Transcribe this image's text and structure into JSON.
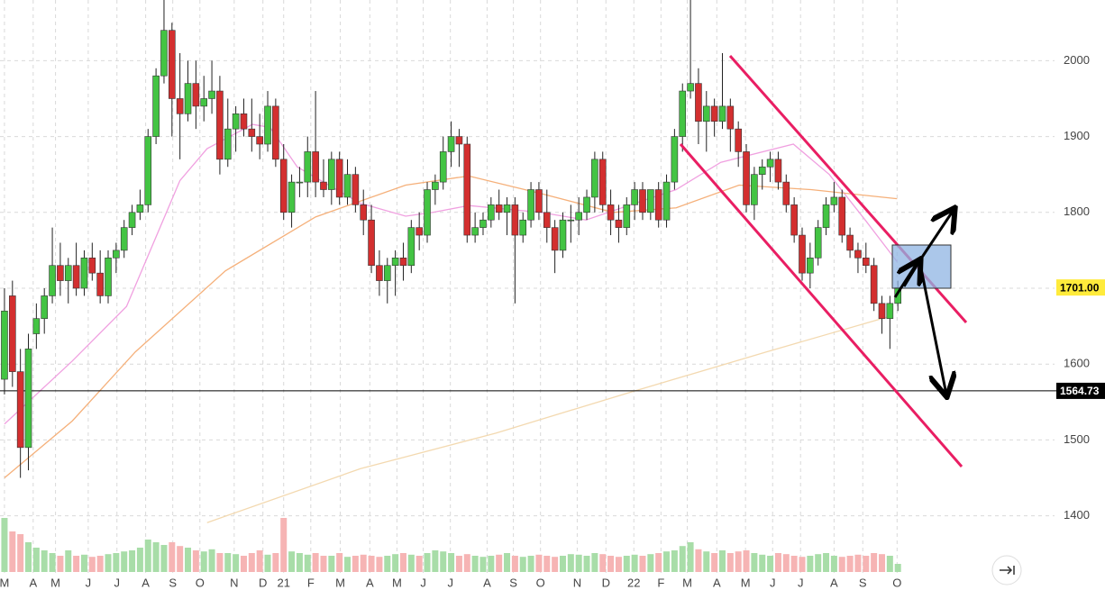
{
  "chart_data": {
    "type": "candlestick",
    "up_color": "#43c443",
    "down_color": "#d32f2f",
    "candles": [
      [
        1580,
        1700,
        1560,
        1670
      ],
      [
        1690,
        1710,
        1570,
        1590
      ],
      [
        1590,
        1620,
        1450,
        1490
      ],
      [
        1490,
        1640,
        1460,
        1620
      ],
      [
        1640,
        1680,
        1620,
        1660
      ],
      [
        1660,
        1700,
        1640,
        1690
      ],
      [
        1690,
        1780,
        1680,
        1730
      ],
      [
        1730,
        1760,
        1690,
        1710
      ],
      [
        1710,
        1740,
        1680,
        1730
      ],
      [
        1730,
        1760,
        1690,
        1700
      ],
      [
        1700,
        1750,
        1690,
        1740
      ],
      [
        1740,
        1760,
        1710,
        1720
      ],
      [
        1720,
        1750,
        1680,
        1690
      ],
      [
        1690,
        1750,
        1680,
        1740
      ],
      [
        1740,
        1760,
        1720,
        1750
      ],
      [
        1750,
        1790,
        1740,
        1780
      ],
      [
        1780,
        1810,
        1770,
        1800
      ],
      [
        1800,
        1830,
        1790,
        1810
      ],
      [
        1810,
        1910,
        1800,
        1900
      ],
      [
        1900,
        1990,
        1890,
        1980
      ],
      [
        1980,
        2080,
        1970,
        2040
      ],
      [
        2040,
        2050,
        1900,
        1950
      ],
      [
        1950,
        2010,
        1870,
        1930
      ],
      [
        1930,
        2000,
        1920,
        1970
      ],
      [
        1970,
        2000,
        1910,
        1940
      ],
      [
        1940,
        1980,
        1920,
        1950
      ],
      [
        1950,
        2000,
        1930,
        1960
      ],
      [
        1960,
        1980,
        1850,
        1870
      ],
      [
        1870,
        1950,
        1860,
        1910
      ],
      [
        1910,
        1940,
        1880,
        1930
      ],
      [
        1930,
        1950,
        1900,
        1910
      ],
      [
        1910,
        1950,
        1880,
        1900
      ],
      [
        1900,
        1930,
        1870,
        1890
      ],
      [
        1890,
        1960,
        1880,
        1940
      ],
      [
        1940,
        1950,
        1860,
        1870
      ],
      [
        1870,
        1890,
        1790,
        1800
      ],
      [
        1800,
        1850,
        1780,
        1840
      ],
      [
        1840,
        1860,
        1820,
        1840
      ],
      [
        1840,
        1900,
        1820,
        1880
      ],
      [
        1880,
        1960,
        1820,
        1840
      ],
      [
        1840,
        1870,
        1820,
        1830
      ],
      [
        1830,
        1880,
        1810,
        1870
      ],
      [
        1870,
        1880,
        1810,
        1820
      ],
      [
        1820,
        1870,
        1810,
        1850
      ],
      [
        1850,
        1860,
        1800,
        1810
      ],
      [
        1810,
        1830,
        1770,
        1790
      ],
      [
        1790,
        1810,
        1720,
        1730
      ],
      [
        1730,
        1750,
        1690,
        1710
      ],
      [
        1710,
        1740,
        1680,
        1730
      ],
      [
        1730,
        1750,
        1690,
        1740
      ],
      [
        1740,
        1760,
        1710,
        1730
      ],
      [
        1730,
        1790,
        1720,
        1780
      ],
      [
        1780,
        1800,
        1750,
        1770
      ],
      [
        1770,
        1840,
        1760,
        1830
      ],
      [
        1830,
        1850,
        1810,
        1840
      ],
      [
        1840,
        1900,
        1830,
        1880
      ],
      [
        1880,
        1920,
        1860,
        1900
      ],
      [
        1900,
        1910,
        1860,
        1890
      ],
      [
        1890,
        1900,
        1760,
        1770
      ],
      [
        1770,
        1800,
        1760,
        1780
      ],
      [
        1780,
        1800,
        1770,
        1790
      ],
      [
        1790,
        1820,
        1780,
        1810
      ],
      [
        1810,
        1830,
        1790,
        1800
      ],
      [
        1800,
        1820,
        1770,
        1810
      ],
      [
        1810,
        1820,
        1680,
        1770
      ],
      [
        1770,
        1800,
        1760,
        1790
      ],
      [
        1790,
        1840,
        1780,
        1830
      ],
      [
        1830,
        1840,
        1790,
        1800
      ],
      [
        1800,
        1830,
        1760,
        1780
      ],
      [
        1780,
        1790,
        1720,
        1750
      ],
      [
        1750,
        1800,
        1740,
        1790
      ],
      [
        1790,
        1810,
        1760,
        1790
      ],
      [
        1790,
        1820,
        1770,
        1800
      ],
      [
        1800,
        1830,
        1790,
        1820
      ],
      [
        1820,
        1880,
        1800,
        1870
      ],
      [
        1870,
        1880,
        1800,
        1810
      ],
      [
        1810,
        1830,
        1770,
        1790
      ],
      [
        1790,
        1810,
        1760,
        1780
      ],
      [
        1780,
        1820,
        1770,
        1810
      ],
      [
        1810,
        1840,
        1790,
        1830
      ],
      [
        1830,
        1840,
        1790,
        1800
      ],
      [
        1800,
        1830,
        1790,
        1830
      ],
      [
        1830,
        1840,
        1780,
        1790
      ],
      [
        1790,
        1850,
        1780,
        1840
      ],
      [
        1840,
        1910,
        1830,
        1900
      ],
      [
        1900,
        1970,
        1880,
        1960
      ],
      [
        1960,
        2080,
        1950,
        1970
      ],
      [
        1970,
        1990,
        1890,
        1920
      ],
      [
        1920,
        1960,
        1880,
        1940
      ],
      [
        1940,
        1950,
        1900,
        1920
      ],
      [
        1920,
        2010,
        1910,
        1940
      ],
      [
        1940,
        1950,
        1880,
        1910
      ],
      [
        1910,
        1920,
        1860,
        1880
      ],
      [
        1880,
        1890,
        1800,
        1810
      ],
      [
        1810,
        1860,
        1790,
        1850
      ],
      [
        1850,
        1870,
        1830,
        1860
      ],
      [
        1860,
        1880,
        1840,
        1870
      ],
      [
        1870,
        1880,
        1830,
        1840
      ],
      [
        1840,
        1850,
        1800,
        1810
      ],
      [
        1810,
        1820,
        1760,
        1770
      ],
      [
        1770,
        1780,
        1710,
        1720
      ],
      [
        1720,
        1760,
        1700,
        1740
      ],
      [
        1740,
        1790,
        1730,
        1780
      ],
      [
        1780,
        1820,
        1770,
        1810
      ],
      [
        1810,
        1840,
        1800,
        1820
      ],
      [
        1820,
        1830,
        1760,
        1770
      ],
      [
        1770,
        1780,
        1740,
        1750
      ],
      [
        1750,
        1760,
        1720,
        1740
      ],
      [
        1740,
        1760,
        1720,
        1730
      ],
      [
        1730,
        1740,
        1670,
        1680
      ],
      [
        1680,
        1690,
        1640,
        1660
      ],
      [
        1660,
        1690,
        1620,
        1680
      ],
      [
        1680,
        1710,
        1670,
        1701
      ]
    ],
    "volume": {
      "up_color": "#a8dda8",
      "down_color": "#f6b4b4",
      "vlim": [
        0,
        100
      ],
      "values": [
        100,
        75,
        70,
        55,
        45,
        40,
        35,
        30,
        40,
        30,
        32,
        28,
        30,
        33,
        35,
        38,
        40,
        45,
        60,
        55,
        50,
        55,
        48,
        45,
        40,
        38,
        42,
        35,
        35,
        33,
        30,
        35,
        40,
        32,
        35,
        100,
        38,
        35,
        32,
        35,
        30,
        30,
        35,
        28,
        30,
        32,
        30,
        28,
        30,
        33,
        35,
        32,
        30,
        35,
        40,
        38,
        35,
        30,
        33,
        30,
        28,
        30,
        32,
        35,
        30,
        28,
        30,
        32,
        30,
        28,
        30,
        33,
        32,
        30,
        35,
        33,
        30,
        28,
        30,
        32,
        30,
        33,
        35,
        38,
        40,
        48,
        55,
        42,
        38,
        35,
        40,
        35,
        38,
        40,
        35,
        32,
        30,
        35,
        33,
        30,
        28,
        30,
        33,
        35,
        30,
        28,
        30,
        32,
        30,
        35,
        33,
        30,
        15
      ]
    },
    "moving_averages": [
      {
        "color": "#f0a0e0",
        "x": [
          0,
          8.5,
          15.3,
          22,
          25.4,
          31.1,
          33.3,
          36.7,
          44.6,
          50.3,
          53.7,
          58.2,
          67.2,
          72.9,
          78.5,
          84.2,
          89.8,
          98.9,
          103.4,
          107.9,
          111.9
        ],
        "values": [
          1521,
          1604,
          1676,
          1842,
          1884,
          1916,
          1912,
          1860,
          1812,
          1795,
          1800,
          1809,
          1800,
          1790,
          1810,
          1830,
          1866,
          1890,
          1850,
          1790,
          1735
        ]
      },
      {
        "color": "#f5b07a",
        "x": [
          0,
          8.5,
          16.4,
          27.7,
          39,
          50.3,
          58.2,
          67.2,
          76.3,
          84.2,
          92.1,
          101.1,
          111.9
        ],
        "values": [
          1450,
          1525,
          1616,
          1723,
          1794,
          1836,
          1848,
          1825,
          1800,
          1806,
          1836,
          1830,
          1818
        ]
      },
      {
        "color": "#f3d9b0",
        "x": [
          25.4,
          44.6,
          61.6,
          78.5,
          95.5,
          111.3
        ],
        "values": [
          1391,
          1462,
          1509,
          1563,
          1616,
          1664
        ]
      }
    ],
    "xlim": [
      -0.56,
      112.43
    ],
    "ylim": [
      1320,
      2080
    ],
    "yticks": [
      1400,
      1500,
      1600,
      1700,
      1800,
      1900,
      2000
    ],
    "xticks": [
      {
        "value": 0,
        "label": "M"
      },
      {
        "value": 3.6,
        "label": "A"
      },
      {
        "value": 6.4,
        "label": "M"
      },
      {
        "value": 10.5,
        "label": "J"
      },
      {
        "value": 14.1,
        "label": "J"
      },
      {
        "value": 17.7,
        "label": "A"
      },
      {
        "value": 21.1,
        "label": "S"
      },
      {
        "value": 24.5,
        "label": "O"
      },
      {
        "value": 28.8,
        "label": "N"
      },
      {
        "value": 32.4,
        "label": "D"
      },
      {
        "value": 35,
        "label": "21"
      },
      {
        "value": 38.4,
        "label": "F"
      },
      {
        "value": 42.1,
        "label": "M"
      },
      {
        "value": 45.8,
        "label": "A"
      },
      {
        "value": 49.2,
        "label": "M"
      },
      {
        "value": 52.5,
        "label": "J"
      },
      {
        "value": 55.9,
        "label": "J"
      },
      {
        "value": 60.5,
        "label": "A"
      },
      {
        "value": 63.8,
        "label": "S"
      },
      {
        "value": 67.2,
        "label": "O"
      },
      {
        "value": 71.8,
        "label": "N"
      },
      {
        "value": 75.4,
        "label": "D"
      },
      {
        "value": 78.9,
        "label": "22"
      },
      {
        "value": 82.3,
        "label": "F"
      },
      {
        "value": 85.6,
        "label": "M"
      },
      {
        "value": 89.3,
        "label": "A"
      },
      {
        "value": 92.9,
        "label": "M"
      },
      {
        "value": 96.3,
        "label": "J"
      },
      {
        "value": 99.8,
        "label": "J"
      },
      {
        "value": 104,
        "label": "A"
      },
      {
        "value": 107.6,
        "label": "S"
      },
      {
        "value": 111.9,
        "label": "O"
      }
    ],
    "grid": true,
    "last_price": {
      "value": 1701,
      "label": "1701.00",
      "color": "#ffeb3b"
    },
    "hline": {
      "value": 1564.73,
      "label": "1564.73",
      "color": "#000000"
    }
  }
}
